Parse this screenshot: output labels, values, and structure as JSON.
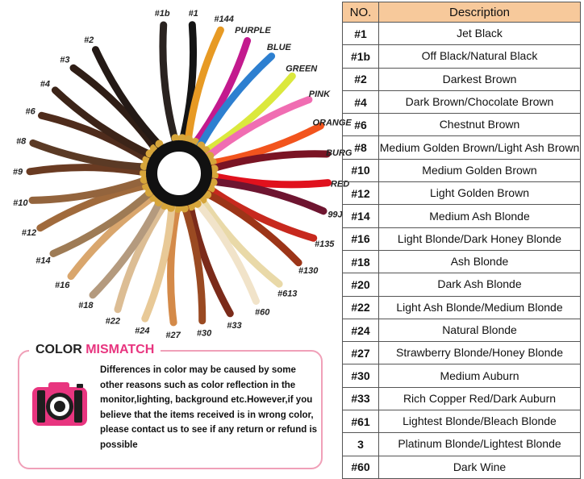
{
  "swatches": [
    {
      "label": "#1b",
      "color": "#2a2320"
    },
    {
      "label": "#1",
      "color": "#141414"
    },
    {
      "label": "#144",
      "color": "#e79a24"
    },
    {
      "label": "PURPLE",
      "color": "#c31a8e"
    },
    {
      "label": "BLUE",
      "color": "#2d7fd0"
    },
    {
      "label": "GREEN",
      "color": "#dbe83d"
    },
    {
      "label": "PINK",
      "color": "#f06db2"
    },
    {
      "label": "ORANGE",
      "color": "#f2541d"
    },
    {
      "label": "BURG",
      "color": "#7a1424"
    },
    {
      "label": "RED",
      "color": "#e0111d"
    },
    {
      "label": "99J",
      "color": "#6e1530"
    },
    {
      "label": "#135",
      "color": "#c7291e"
    },
    {
      "label": "#130",
      "color": "#9c3518"
    },
    {
      "label": "#613",
      "color": "#e9d9a8"
    },
    {
      "label": "#60",
      "color": "#f1e3c9"
    },
    {
      "label": "#33",
      "color": "#7b2b1a"
    },
    {
      "label": "#30",
      "color": "#9a4a22"
    },
    {
      "label": "#27",
      "color": "#d48a49"
    },
    {
      "label": "#24",
      "color": "#e8c997"
    },
    {
      "label": "#22",
      "color": "#dcbd94"
    },
    {
      "label": "#18",
      "color": "#b49a7e"
    },
    {
      "label": "#16",
      "color": "#d9a66d"
    },
    {
      "label": "#14",
      "color": "#9e7b55"
    },
    {
      "label": "#12",
      "color": "#a06a3c"
    },
    {
      "label": "#10",
      "color": "#93643d"
    },
    {
      "label": "#9",
      "color": "#6a3b22"
    },
    {
      "label": "#8",
      "color": "#5b3a25"
    },
    {
      "label": "#6",
      "color": "#4f2c1c"
    },
    {
      "label": "#4",
      "color": "#3c2418"
    },
    {
      "label": "#3",
      "color": "#2f1e16"
    },
    {
      "label": "#2",
      "color": "#241a16"
    }
  ],
  "table": {
    "header": {
      "no": "NO.",
      "description": "Description"
    },
    "rows": [
      {
        "no": "#1",
        "description": "Jet Black"
      },
      {
        "no": "#1b",
        "description": "Off Black/Natural Black"
      },
      {
        "no": "#2",
        "description": "Darkest Brown"
      },
      {
        "no": "#4",
        "description": "Dark Brown/Chocolate Brown"
      },
      {
        "no": "#6",
        "description": "Chestnut Brown"
      },
      {
        "no": "#8",
        "description": "Medium Golden Brown/Light Ash Brown"
      },
      {
        "no": "#10",
        "description": "Medium Golden Brown"
      },
      {
        "no": "#12",
        "description": "Light Golden Brown"
      },
      {
        "no": "#14",
        "description": "Medium Ash Blonde"
      },
      {
        "no": "#16",
        "description": "Light Blonde/Dark Honey Blonde"
      },
      {
        "no": "#18",
        "description": "Ash Blonde"
      },
      {
        "no": "#20",
        "description": "Dark Ash Blonde"
      },
      {
        "no": "#22",
        "description": "Light Ash Blonde/Medium Blonde"
      },
      {
        "no": "#24",
        "description": "Natural Blonde"
      },
      {
        "no": "#27",
        "description": "Strawberry Blonde/Honey Blonde"
      },
      {
        "no": "#30",
        "description": "Medium Auburn"
      },
      {
        "no": "#33",
        "description": "Rich Copper Red/Dark Auburn"
      },
      {
        "no": "#61",
        "description": "Lightest Blonde/Bleach Blonde"
      },
      {
        "no": "3",
        "description": "Platinum Blonde/Lightest Blonde"
      },
      {
        "no": "#60",
        "description": "Dark Wine"
      }
    ]
  },
  "mismatch": {
    "title_main": "COLOR ",
    "title_accent": "MISMATCH",
    "icon": "camera-icon",
    "accent_color": "#e8357f",
    "text": "Differences in color may be caused by some other reasons such as color reflection in the monitor,lighting, background etc.However,if you believe that the items received is in wrong color, please contact us to see if any return or refund is possible"
  }
}
